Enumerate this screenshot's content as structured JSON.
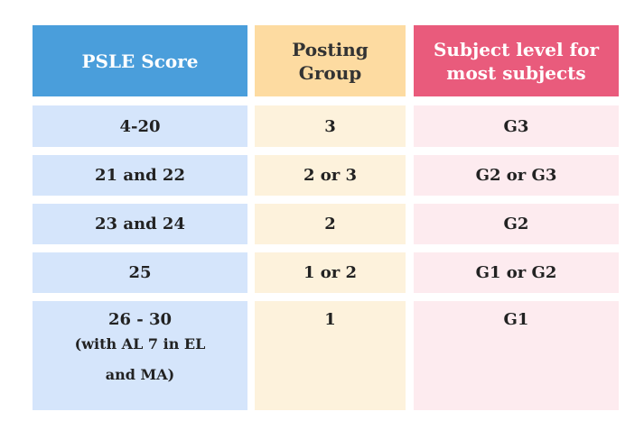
{
  "table": {
    "header": [
      "PSLE Score",
      "Posting Group",
      "Subject level for most subjects"
    ],
    "rows": [
      [
        "4-20",
        "3",
        "G3"
      ],
      [
        "21 and 22",
        "2 or 3",
        "G2 or G3"
      ],
      [
        "23 and 24",
        "2",
        "G2"
      ],
      [
        "25",
        "1 or 2",
        "G1 or G2"
      ],
      [
        "26 - 30",
        "1",
        "G1"
      ]
    ],
    "note": "(with AL 7 in EL and MA)"
  }
}
